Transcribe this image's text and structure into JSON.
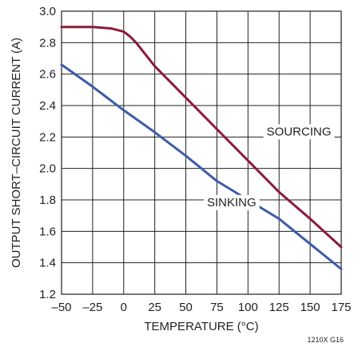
{
  "chart_data": {
    "type": "line",
    "xlabel": "TEMPERATURE (°C)",
    "ylabel": "OUTPUT SHORT–CIRCUIT CURRENT (A)",
    "figure_id": "1210X G16",
    "xlim": [
      -50,
      175
    ],
    "ylim": [
      1.2,
      3.0
    ],
    "xticks": [
      -50,
      -25,
      0,
      25,
      50,
      75,
      100,
      125,
      150,
      175
    ],
    "xtick_labels": [
      "–50",
      "–25",
      "0",
      "25",
      "50",
      "75",
      "100",
      "125",
      "150",
      "175"
    ],
    "yticks": [
      1.2,
      1.4,
      1.6,
      1.8,
      2.0,
      2.2,
      2.4,
      2.6,
      2.8,
      3.0
    ],
    "ytick_labels": [
      "1.2",
      "1.4",
      "1.6",
      "1.8",
      "2.0",
      "2.2",
      "2.4",
      "2.6",
      "2.8",
      "3.0"
    ],
    "grid": true,
    "series": [
      {
        "name": "SOURCING",
        "color": "#8b1c3a",
        "label_at": [
          115,
          2.21
        ],
        "x": [
          -50,
          -25,
          -10,
          0,
          5,
          10,
          25,
          50,
          75,
          100,
          125,
          150,
          175
        ],
        "y": [
          2.9,
          2.9,
          2.89,
          2.87,
          2.84,
          2.8,
          2.65,
          2.45,
          2.25,
          2.05,
          1.85,
          1.68,
          1.5
        ]
      },
      {
        "name": "SINKING",
        "color": "#3d5ba8",
        "label_at": [
          67,
          1.76
        ],
        "x": [
          -50,
          -25,
          0,
          25,
          50,
          75,
          100,
          125,
          150,
          175
        ],
        "y": [
          2.66,
          2.52,
          2.37,
          2.23,
          2.08,
          1.92,
          1.8,
          1.68,
          1.52,
          1.36
        ]
      }
    ]
  }
}
